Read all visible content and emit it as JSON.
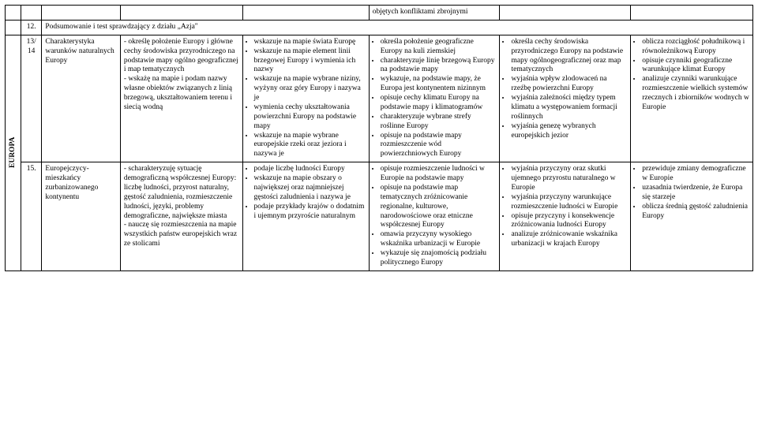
{
  "rows": {
    "cont": {
      "col_c": "objętych konfliktami zbrojnymi"
    },
    "r12": {
      "num": "12.",
      "title": "Podsumowanie i test sprawdzający z działu „Azja\""
    },
    "section_label": "EUROPA",
    "r13": {
      "num": "13/\n14",
      "topic": "Charakterystyka warunków naturalnych Europy",
      "a": [
        "określę położenie Europy i główne cechy środowiska przyrodniczego na podstawie mapy ogólno geograficznej i map tematycznych",
        "wskażę na mapie i podam nazwy własne obiektów związanych z linią brzegową, ukształtowaniem terenu i siecią wodną"
      ],
      "b": [
        "wskazuje na mapie świata Europę",
        "wskazuje na mapie element linii brzegowej Europy i wymienia ich nazwy",
        "wskazuje na mapie wybrane niziny, wyżyny oraz góry Europy i nazywa je",
        "wymienia cechy ukształtowania powierzchni Europy na podstawie mapy",
        "wskazuje na mapie wybrane europejskie rzeki oraz jeziora i nazywa je"
      ],
      "c": [
        "określa położenie geograficzne Europy na kuli ziemskiej",
        "charakteryzuje linię brzegową Europy na podstawie mapy",
        "wykazuje, na podstawie mapy, że Europa jest kontynentem nizinnym",
        "opisuje cechy klimatu Europy na podstawie mapy i klimatogramów",
        "charakteryzuje wybrane strefy roślinne Europy",
        "opisuje na podstawie mapy rozmieszczenie wód powierzchniowych Europy"
      ],
      "d": [
        "określa cechy środowiska przyrodniczego Europy na podstawie mapy ogólnogeograficznej oraz map tematycznych",
        "wyjaśnia wpływ zlodowaceń na rzeźbę powierzchni Europy",
        "wyjaśnia zależności między typem klimatu a występowaniem formacji roślinnych",
        "wyjaśnia genezę wybranych europejskich jezior"
      ],
      "e": [
        "oblicza rozciągłość południkową i równoleżnikową Europy",
        "opisuje czynniki geograficzne warunkujące klimat Europy",
        "analizuje czynniki warunkujące rozmieszczenie wielkich systemów rzecznych i zbiorników wodnych w Europie"
      ]
    },
    "r15": {
      "num": "15.",
      "topic": "Europejczycy- mieszkańcy zurbanizowanego kontynentu",
      "a": [
        "scharakteryzuję sytuację demograficzną współczesnej Europy: liczbę ludności, przyrost naturalny, gęstość zaludnienia, rozmieszczenie ludności, języki, problemy demograficzne, największe miasta",
        "nauczę się rozmieszczenia na mapie wszystkich państw europejskich wraz ze stolicami"
      ],
      "b": [
        "podaje liczbę ludności Europy",
        "wskazuje na mapie obszary o największej oraz najmniejszej gęstości zaludnienia i nazywa je",
        "podaje przykłady krajów o dodatnim i ujemnym przyroście naturalnym"
      ],
      "c": [
        "opisuje rozmieszczenie ludności w Europie na podstawie mapy",
        "opisuje na podstawie map tematycznych zróżnicowanie regionalne, kulturowe, narodowościowe oraz etniczne współczesnej Europy",
        "omawia przyczyny wysokiego wskaźnika urbanizacji w Europie",
        "wykazuje się znajomością podziału politycznego Europy"
      ],
      "d": [
        "wyjaśnia przyczyny oraz skutki ujemnego przyrostu naturalnego w Europie",
        "wyjaśnia przyczyny warunkujące rozmieszczenie ludności w Europie",
        "opisuje przyczyny i konsekwencje zróżnicowania ludności Europy",
        "analizuje zróżnicowanie wskaźnika urbanizacji w krajach Europy"
      ],
      "e": [
        "przewiduje zmiany demograficzne w Europie",
        "uzasadnia twierdzenie, że Europa się starzeje",
        "oblicza średnią gęstość zaludnienia Europy"
      ]
    }
  }
}
